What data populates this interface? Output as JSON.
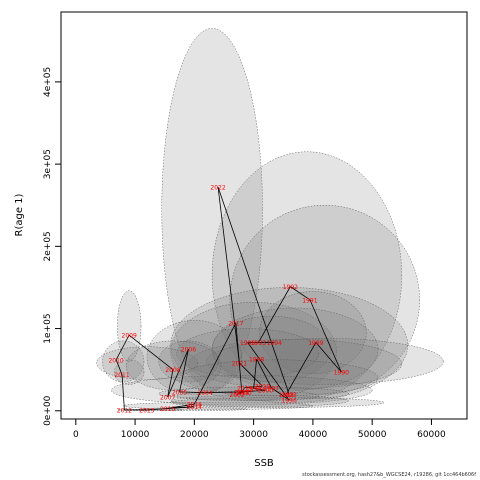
{
  "chart_data": {
    "type": "scatter",
    "xlabel": "SSB",
    "ylabel": "R(age 1)",
    "xlim": [
      -2500,
      66000
    ],
    "ylim": [
      -10000,
      485000
    ],
    "x_ticks": [
      0,
      10000,
      20000,
      30000,
      40000,
      50000,
      60000
    ],
    "x_tick_labels": [
      "0",
      "10000",
      "20000",
      "30000",
      "40000",
      "50000",
      "60000"
    ],
    "y_ticks": [
      0,
      100000,
      200000,
      300000,
      400000
    ],
    "y_tick_labels": [
      "0e+00",
      "1e+05",
      "2e+05",
      "3e+05",
      "4e+05"
    ],
    "grid": false,
    "point_color": "#ff0000",
    "line_color": "#000000",
    "ellipse_fill": "rgba(120,120,120,0.2)",
    "ellipse_stroke": "#555555",
    "points": [
      {
        "year": "1988",
        "ssb": 35500,
        "rec": 20000
      },
      {
        "year": "1989",
        "ssb": 40500,
        "rec": 83000
      },
      {
        "year": "1990",
        "ssb": 44800,
        "rec": 47000
      },
      {
        "year": "1991",
        "ssb": 39500,
        "rec": 135000
      },
      {
        "year": "1992",
        "ssb": 36200,
        "rec": 151000
      },
      {
        "year": "1993",
        "ssb": 30800,
        "rec": 83000
      },
      {
        "year": "1994",
        "ssb": 33500,
        "rec": 83000
      },
      {
        "year": "1995",
        "ssb": 29000,
        "rec": 83000
      },
      {
        "year": "1996",
        "ssb": 36000,
        "rec": 13000
      },
      {
        "year": "1997",
        "ssb": 33000,
        "rec": 28000
      },
      {
        "year": "1998",
        "ssb": 30500,
        "rec": 63000
      },
      {
        "year": "1999",
        "ssb": 30000,
        "rec": 27000
      },
      {
        "year": "2000",
        "ssb": 32000,
        "rec": 25000
      },
      {
        "year": "2001",
        "ssb": 28000,
        "rec": 23000
      },
      {
        "year": "2002",
        "ssb": 27200,
        "rec": 20000
      },
      {
        "year": "2003",
        "ssb": 28400,
        "rec": 23000
      },
      {
        "year": "2004",
        "ssb": 21800,
        "rec": 22000
      },
      {
        "year": "2005",
        "ssb": 17500,
        "rec": 23000
      },
      {
        "year": "2006",
        "ssb": 19000,
        "rec": 75000
      },
      {
        "year": "2007",
        "ssb": 15500,
        "rec": 17000
      },
      {
        "year": "2008",
        "ssb": 16400,
        "rec": 50000
      },
      {
        "year": "2009",
        "ssb": 9000,
        "rec": 92000
      },
      {
        "year": "2010",
        "ssb": 6800,
        "rec": 62000
      },
      {
        "year": "2011",
        "ssb": 7800,
        "rec": 44000
      },
      {
        "year": "2012",
        "ssb": 8200,
        "rec": 1000
      },
      {
        "year": "2013",
        "ssb": 12000,
        "rec": 1000
      },
      {
        "year": "2014",
        "ssb": 20000,
        "rec": 5000
      },
      {
        "year": "2015",
        "ssb": 15500,
        "rec": 3000
      },
      {
        "year": "2016",
        "ssb": 20000,
        "rec": 8000
      },
      {
        "year": "2017",
        "ssb": 27000,
        "rec": 107000
      },
      {
        "year": "2018",
        "ssb": 28000,
        "rec": 23000
      },
      {
        "year": "2019",
        "ssb": 28500,
        "rec": 28000
      },
      {
        "year": "2020",
        "ssb": 31500,
        "rec": 30000
      },
      {
        "year": "2021",
        "ssb": 27600,
        "rec": 58000
      },
      {
        "year": "2022",
        "ssb": 24000,
        "rec": 272000
      },
      {
        "year": "2023",
        "ssb": 36000,
        "rec": 20000
      }
    ],
    "ellipses": [
      {
        "cx": 23000,
        "cy": 245000,
        "rx": 8500,
        "ry": 220000
      },
      {
        "cx": 39000,
        "cy": 165000,
        "rx": 16000,
        "ry": 150000
      },
      {
        "cx": 42000,
        "cy": 135000,
        "rx": 16000,
        "ry": 115000
      },
      {
        "cx": 36000,
        "cy": 80000,
        "rx": 20000,
        "ry": 70000
      },
      {
        "cx": 30000,
        "cy": 72000,
        "rx": 14000,
        "ry": 60000
      },
      {
        "cx": 37000,
        "cy": 75000,
        "rx": 14000,
        "ry": 50000
      },
      {
        "cx": 33000,
        "cy": 75000,
        "rx": 10000,
        "ry": 40000
      },
      {
        "cx": 40000,
        "cy": 95000,
        "rx": 9000,
        "ry": 50000
      },
      {
        "cx": 37000,
        "cy": 57000,
        "rx": 18000,
        "ry": 30000
      },
      {
        "cx": 42000,
        "cy": 60000,
        "rx": 20000,
        "ry": 28000
      },
      {
        "cx": 29000,
        "cy": 70000,
        "rx": 12000,
        "ry": 30000
      },
      {
        "cx": 20000,
        "cy": 65000,
        "rx": 8000,
        "ry": 45000
      },
      {
        "cx": 19000,
        "cy": 60000,
        "rx": 5000,
        "ry": 25000
      },
      {
        "cx": 9000,
        "cy": 103000,
        "rx": 2000,
        "ry": 43000
      },
      {
        "cx": 8000,
        "cy": 60000,
        "rx": 3500,
        "ry": 25000
      },
      {
        "cx": 9000,
        "cy": 47000,
        "rx": 2500,
        "ry": 15000
      },
      {
        "cx": 12000,
        "cy": 58000,
        "rx": 8500,
        "ry": 20000
      },
      {
        "cx": 16500,
        "cy": 55000,
        "rx": 8000,
        "ry": 30000
      },
      {
        "cx": 28000,
        "cy": 25000,
        "rx": 22000,
        "ry": 18000
      },
      {
        "cx": 34000,
        "cy": 40000,
        "rx": 17000,
        "ry": 22000
      },
      {
        "cx": 30000,
        "cy": 21000,
        "rx": 16000,
        "ry": 8000
      },
      {
        "cx": 29000,
        "cy": 18000,
        "rx": 12000,
        "ry": 6000
      },
      {
        "cx": 24000,
        "cy": 6000,
        "rx": 16000,
        "ry": 4500
      },
      {
        "cx": 20000,
        "cy": 2000,
        "rx": 9000,
        "ry": 1800
      },
      {
        "cx": 10000,
        "cy": 1000,
        "rx": 3000,
        "ry": 800
      },
      {
        "cx": 14000,
        "cy": 1000,
        "rx": 4000,
        "ry": 900
      },
      {
        "cx": 31000,
        "cy": 12000,
        "rx": 15000,
        "ry": 7000
      },
      {
        "cx": 34000,
        "cy": 10000,
        "rx": 18000,
        "ry": 6000
      }
    ]
  },
  "footer_text": "stockassessment.org, hash27&b_WGCSE24, r19286, git 1cc464b606f"
}
